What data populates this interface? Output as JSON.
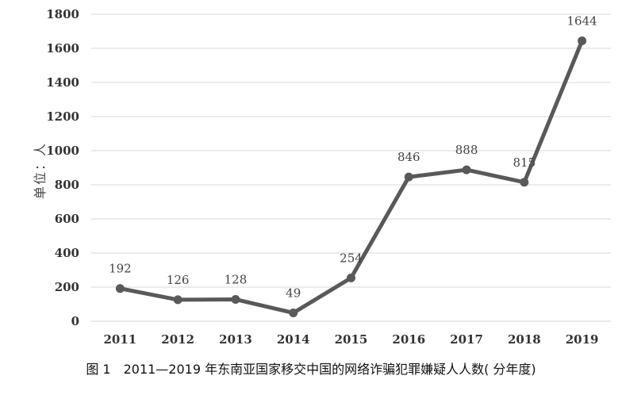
{
  "chart_data": {
    "type": "line",
    "categories": [
      "2011",
      "2012",
      "2013",
      "2014",
      "2015",
      "2016",
      "2017",
      "2018",
      "2019"
    ],
    "values": [
      192,
      126,
      128,
      49,
      254,
      846,
      888,
      815,
      1644
    ],
    "data_labels": [
      "192",
      "126",
      "128",
      "49",
      "254",
      "846",
      "888",
      "815",
      "1644"
    ],
    "ylabel": "单位：人",
    "ylim": [
      0,
      1800
    ],
    "yticks": [
      0,
      200,
      400,
      600,
      800,
      1000,
      1200,
      1400,
      1600,
      1800
    ],
    "grid": true,
    "line_color": "#595959"
  },
  "caption": "图 1　2011—2019 年东南亚国家移交中国的网络诈骗犯罪嫌疑人人数( 分年度)"
}
